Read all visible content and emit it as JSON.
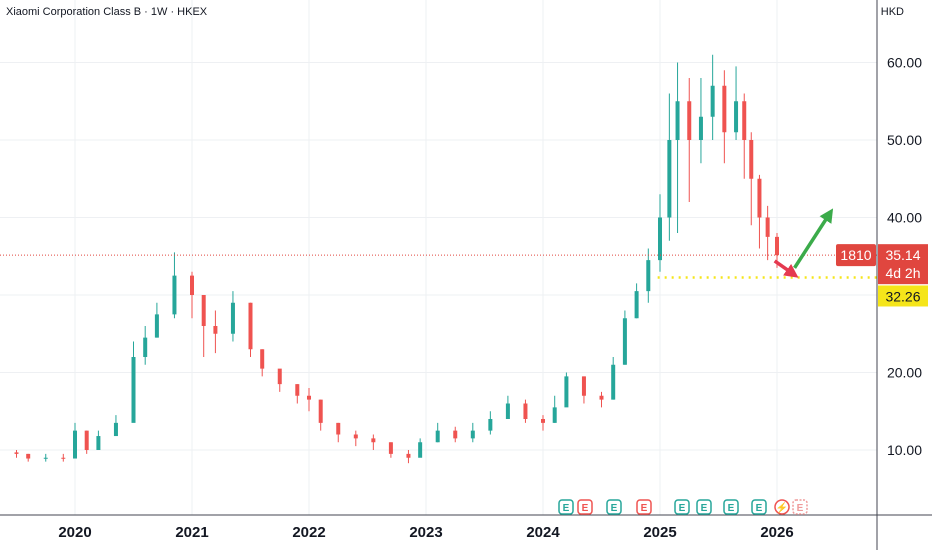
{
  "header": {
    "symbol_title": "Xiaomi Corporation Class B · 1W · HKEX",
    "currency": "HKD"
  },
  "price_scale": {
    "ticks": [
      "60.00",
      "50.00",
      "40.00",
      "30.00",
      "20.00",
      "10.00"
    ]
  },
  "time_scale": {
    "ticks": [
      "2020",
      "2021",
      "2022",
      "2023",
      "2024",
      "2025",
      "2026"
    ]
  },
  "price_tag": {
    "symbol": "1810",
    "price": "35.14",
    "countdown": "4d 2h",
    "color": "#e0463f"
  },
  "level_tag": {
    "price": "32.26",
    "color": "#f5e51a"
  },
  "events": [
    "E",
    "E",
    "E",
    "E",
    "E",
    "E",
    "E",
    "E",
    "⚡",
    "E"
  ],
  "colors": {
    "up": "#26a69a",
    "down": "#ef5350",
    "arrow_up": "#3bab4a",
    "arrow_down": "#e53950",
    "grid": "#eef0f3"
  },
  "chart_data": {
    "type": "candlestick",
    "title": "Xiaomi Corporation Class B · 1W · HKEX",
    "yunit": "HKD",
    "ylim": [
      0,
      65
    ],
    "grid": true,
    "series": [
      {
        "name": "1810",
        "x": [
          2019.5,
          2019.6,
          2019.75,
          2019.9,
          2020.0,
          2020.1,
          2020.2,
          2020.35,
          2020.5,
          2020.6,
          2020.7,
          2020.85,
          2021.0,
          2021.1,
          2021.2,
          2021.35,
          2021.5,
          2021.6,
          2021.75,
          2021.9,
          2022.0,
          2022.1,
          2022.25,
          2022.4,
          2022.55,
          2022.7,
          2022.85,
          2022.95,
          2023.1,
          2023.25,
          2023.4,
          2023.55,
          2023.7,
          2023.85,
          2024.0,
          2024.1,
          2024.2,
          2024.35,
          2024.5,
          2024.6,
          2024.7,
          2024.8,
          2024.9,
          2025.0,
          2025.08,
          2025.15,
          2025.25,
          2025.35,
          2025.45,
          2025.55,
          2025.65,
          2025.72,
          2025.78,
          2025.85,
          2025.92,
          2026.0
        ],
        "close": [
          9.5,
          8.9,
          9.0,
          8.9,
          12.5,
          10.0,
          11.8,
          13.5,
          22.0,
          24.5,
          27.5,
          32.5,
          30.0,
          26.0,
          25.0,
          29.0,
          23.0,
          20.5,
          18.5,
          17.0,
          16.5,
          13.5,
          12.0,
          11.5,
          11.0,
          9.5,
          9.0,
          11.0,
          12.5,
          11.5,
          12.5,
          14.0,
          16.0,
          14.0,
          13.5,
          15.5,
          19.5,
          17.0,
          16.5,
          21.0,
          27.0,
          30.5,
          34.5,
          40.0,
          50.0,
          55.0,
          50.0,
          53.0,
          57.0,
          51.0,
          55.0,
          50.0,
          45.0,
          40.0,
          37.5,
          35.14
        ],
        "high": [
          10.0,
          9.5,
          9.5,
          9.5,
          13.5,
          12.5,
          12.5,
          14.5,
          24.0,
          26.0,
          29.0,
          35.5,
          33.0,
          30.0,
          28.0,
          30.5,
          29.0,
          23.0,
          20.0,
          18.5,
          18.0,
          16.5,
          13.5,
          12.5,
          12.0,
          11.0,
          10.0,
          11.5,
          13.5,
          13.0,
          13.5,
          15.0,
          17.0,
          16.5,
          14.5,
          17.0,
          20.0,
          19.5,
          17.5,
          22.0,
          28.0,
          31.5,
          36.0,
          43.0,
          56.0,
          60.0,
          58.0,
          58.0,
          61.0,
          59.0,
          59.5,
          56.0,
          51.0,
          45.5,
          41.5,
          38.0
        ],
        "low": [
          9.0,
          8.5,
          8.5,
          8.5,
          11.0,
          9.5,
          10.0,
          12.5,
          18.0,
          21.0,
          24.5,
          27.0,
          27.0,
          22.0,
          22.5,
          24.0,
          22.0,
          19.5,
          17.5,
          16.0,
          15.0,
          12.5,
          11.0,
          10.5,
          10.0,
          9.0,
          8.3,
          9.5,
          11.0,
          11.0,
          11.0,
          12.0,
          14.0,
          13.5,
          12.5,
          13.5,
          16.0,
          16.0,
          15.5,
          16.5,
          21.0,
          27.0,
          29.0,
          33.0,
          37.0,
          38.0,
          42.0,
          47.0,
          50.0,
          47.0,
          50.0,
          45.0,
          39.0,
          36.0,
          34.5,
          33.5
        ]
      }
    ],
    "annotations": [
      {
        "type": "horizontal_line",
        "y": 32.26,
        "label": "32.26",
        "style": "dotted",
        "color": "#f5e51a"
      },
      {
        "type": "horizontal_line",
        "y": 35.14,
        "style": "dotted",
        "color": "#e0463f"
      },
      {
        "type": "arrow",
        "from": [
          2026.15,
          33.5
        ],
        "to": [
          2026.45,
          40.5
        ],
        "color": "#3bab4a"
      },
      {
        "type": "arrow",
        "from": [
          2025.98,
          34.4
        ],
        "to": [
          2026.14,
          32.7
        ],
        "color": "#e53950"
      }
    ]
  }
}
